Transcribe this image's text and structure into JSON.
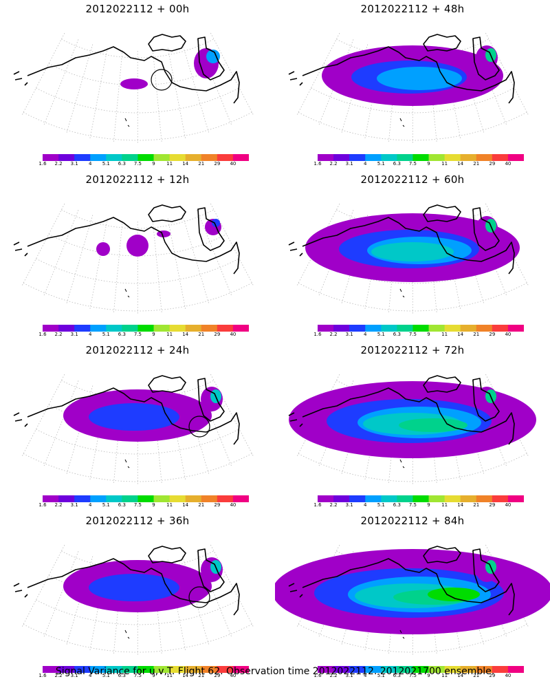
{
  "panels": [
    {
      "title": "2012022112 + 00h",
      "level": 0
    },
    {
      "title": "2012022112 + 48h",
      "level": 3
    },
    {
      "title": "2012022112 + 12h",
      "level": 1
    },
    {
      "title": "2012022112 + 60h",
      "level": 4
    },
    {
      "title": "2012022112 + 24h",
      "level": 2
    },
    {
      "title": "2012022112 + 72h",
      "level": 5
    },
    {
      "title": "2012022112 + 36h",
      "level": 2
    },
    {
      "title": "2012022112 + 84h",
      "level": 6
    }
  ],
  "colorbar": {
    "labels": [
      "1.6",
      "2.2",
      "3.1",
      "4",
      "5.1",
      "6.3",
      "7.5",
      "9",
      "11",
      "14",
      "21",
      "29",
      "40"
    ],
    "colors": [
      "#a000c8",
      "#6e00dc",
      "#1e3cff",
      "#00a0ff",
      "#00c8c8",
      "#00d28c",
      "#00dc00",
      "#a0e632",
      "#e6dc32",
      "#e6af2d",
      "#f08228",
      "#fa3c3c",
      "#f00082"
    ]
  },
  "caption": "Signal Variance for u,v,T. Flight 62. Observation time 2012022112. 2012021700 ensemble."
}
